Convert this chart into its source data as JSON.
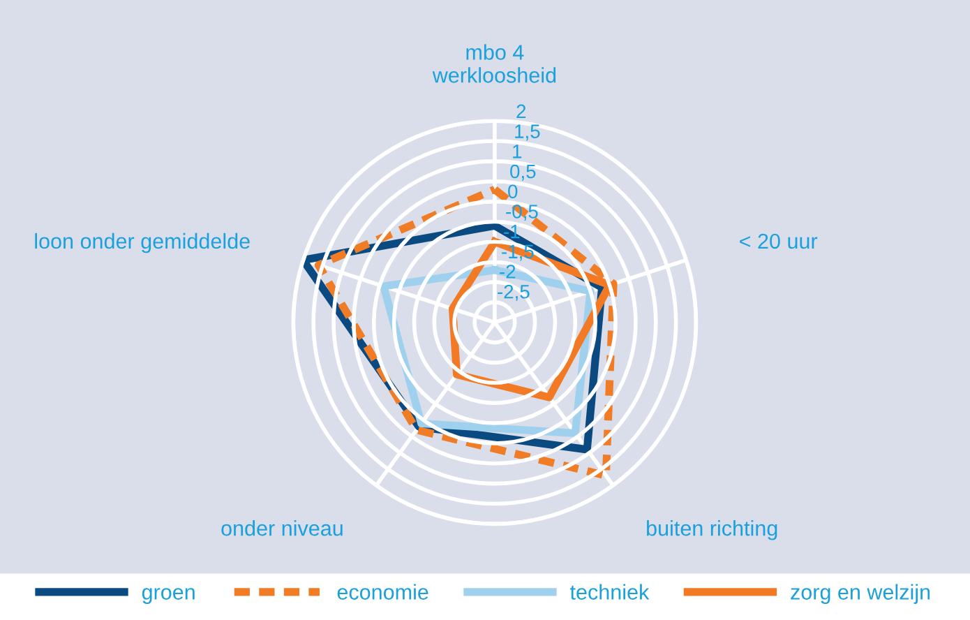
{
  "chart_data": {
    "type": "radar",
    "categories": [
      "mbo 4\nwerkloosheid",
      "< 20 uur",
      "buiten richting",
      "onder niveau",
      "loon onder gemiddelde"
    ],
    "series": [
      {
        "name": "groen",
        "color": "#0b4a80",
        "line_style": "solid",
        "values": [
          -0.6,
          -0.2,
          0.9,
          0.2,
          2.0
        ]
      },
      {
        "name": "economie",
        "color": "#f07d26",
        "line_style": "dashed",
        "values": [
          0.3,
          0.1,
          1.7,
          0.3,
          1.6
        ]
      },
      {
        "name": "techniek",
        "color": "#9fd1ef",
        "line_style": "solid",
        "values": [
          -1.7,
          -0.5,
          0.4,
          0.1,
          -0.1
        ]
      },
      {
        "name": "zorg en welzijn",
        "color": "#f27a24",
        "line_style": "solid",
        "values": [
          -1.0,
          0.0,
          -0.7,
          -1.4,
          -1.9
        ]
      }
    ],
    "ylim": [
      -3,
      2
    ],
    "yticks": [
      {
        "value": 2,
        "label": "2"
      },
      {
        "value": 1.5,
        "label": "1,5"
      },
      {
        "value": 1,
        "label": "1"
      },
      {
        "value": 0.5,
        "label": "0,5"
      },
      {
        "value": 0,
        "label": "0"
      },
      {
        "value": -0.5,
        "label": "-0,5"
      },
      {
        "value": -1,
        "label": "-1"
      },
      {
        "value": -1.5,
        "label": "-1,5"
      },
      {
        "value": -2,
        "label": "-2"
      },
      {
        "value": -2.5,
        "label": "-2,5"
      }
    ],
    "grid": true,
    "legend": "bottom",
    "marker": "none"
  }
}
